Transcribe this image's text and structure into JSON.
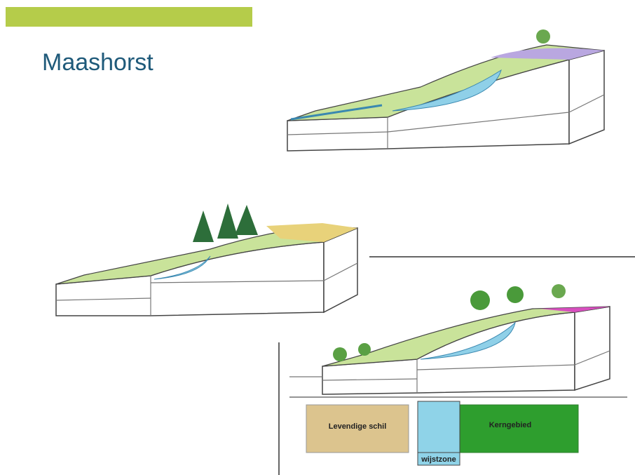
{
  "title": "Maashorst",
  "legend": {
    "items": [
      "Levendige schil",
      "Kerngebied",
      "wijstzone"
    ]
  }
}
